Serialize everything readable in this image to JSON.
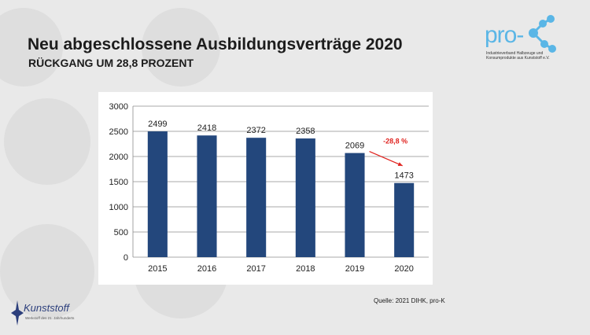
{
  "slide": {
    "title": "Neu abgeschlossene Ausbildungsverträge 2020",
    "subtitle": "RÜCKGANG UM 28,8 PROZENT",
    "source": "Quelle: 2021 DIHK, pro-K"
  },
  "logos": {
    "prok_word": "pro-K",
    "prok_tagline": "Industrieverband Halbzeuge und Konsumprodukte aus Kunststoff e.V.",
    "kunststoff_word": "Kunststoff",
    "kunststoff_tagline": "Werkstoff des 21. Jahrhunderts"
  },
  "colors": {
    "bar": "#23477c",
    "annotation": "#e0231f",
    "prok_accent": "#5ab6e6"
  },
  "chart_data": {
    "type": "bar",
    "categories": [
      "2015",
      "2016",
      "2017",
      "2018",
      "2019",
      "2020"
    ],
    "values": [
      2499,
      2418,
      2372,
      2358,
      2069,
      1473
    ],
    "ylim": [
      0,
      3000
    ],
    "yticks": [
      0,
      500,
      1000,
      1500,
      2000,
      2500,
      3000
    ],
    "grid": true,
    "annotation": {
      "text": "-28,8 %",
      "from_category": "2019",
      "to_category": "2020"
    }
  }
}
